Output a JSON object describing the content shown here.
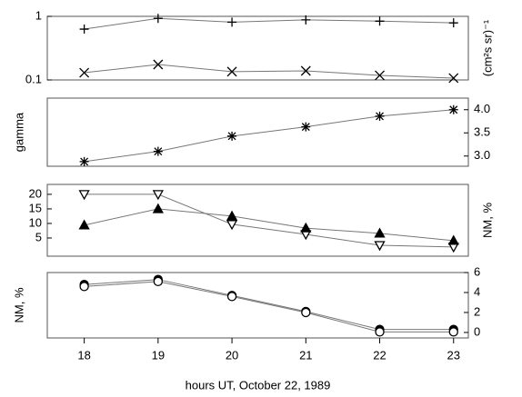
{
  "chart_data": [
    {
      "type": "line",
      "log_y": true,
      "tick_side": "left",
      "ylabel": "(cm²s sr)⁻¹",
      "x": [
        18,
        19,
        20,
        21,
        22,
        23
      ],
      "xlim": [
        17.5,
        23.2
      ],
      "ylim": [
        0.1,
        1
      ],
      "yticks": [
        {
          "value": 1,
          "label": "1"
        },
        0.1
      ],
      "series": [
        {
          "color": "#000000",
          "marker": "plus",
          "values": [
            0.63,
            0.93,
            0.81,
            0.88,
            0.84,
            0.79
          ]
        },
        {
          "color": "#000000",
          "marker": "cross",
          "values": [
            0.13,
            0.175,
            0.135,
            0.139,
            0.118,
            0.107
          ]
        }
      ]
    },
    {
      "type": "line",
      "log_y": false,
      "tick_side": "right",
      "ylabel": "gamma",
      "x": [
        18,
        19,
        20,
        21,
        22,
        23
      ],
      "xlim": [
        17.5,
        23.2
      ],
      "ylim": [
        2.78,
        4.25
      ],
      "yticks": [
        {
          "value": 4,
          "label": "4.0"
        },
        3.5,
        {
          "value": 3,
          "label": "3.0"
        }
      ],
      "series": [
        {
          "color": "#000000",
          "marker": "star",
          "values": [
            2.88,
            3.1,
            3.43,
            3.63,
            3.86,
            4.0
          ]
        }
      ]
    },
    {
      "type": "line",
      "log_y": false,
      "tick_side": "left",
      "ylabel": "NM, %",
      "x": [
        18,
        19,
        20,
        21,
        22,
        23
      ],
      "xlim": [
        17.5,
        23.2
      ],
      "ylim": [
        -1.25,
        23.4
      ],
      "yticks": [
        20,
        15,
        10,
        5
      ],
      "series": [
        {
          "color": "#000000",
          "marker": "triangle-down-open",
          "values": [
            20,
            20,
            9.7,
            6.25,
            2.5,
            1.9
          ]
        },
        {
          "color": "#000000",
          "marker": "triangle-up",
          "values": [
            9.4,
            15,
            12.5,
            8.4,
            6.6,
            4.1
          ]
        }
      ]
    },
    {
      "type": "line",
      "log_y": false,
      "tick_side": "right",
      "ylabel": "NM, %",
      "x": [
        18,
        19,
        20,
        21,
        22,
        23
      ],
      "xlim": [
        17.5,
        23.2
      ],
      "ylim": [
        -0.55,
        6
      ],
      "yticks": [
        6,
        4,
        2,
        0
      ],
      "xticks": [
        18,
        19,
        20,
        21,
        22,
        23
      ],
      "xlabel": "hours UT, October 22, 1989",
      "series": [
        {
          "color": "#000000",
          "marker": "circle",
          "values": [
            4.8,
            5.3,
            3.7,
            2.1,
            0.3,
            0.3
          ]
        },
        {
          "color": "#000000",
          "marker": "circle-open",
          "values": [
            4.6,
            5.1,
            3.6,
            2.0,
            0.05,
            0.05
          ]
        }
      ]
    }
  ]
}
